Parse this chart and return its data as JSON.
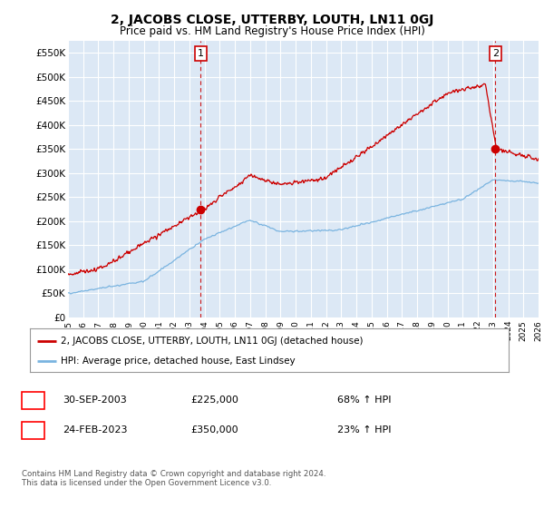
{
  "title": "2, JACOBS CLOSE, UTTERBY, LOUTH, LN11 0GJ",
  "subtitle": "Price paid vs. HM Land Registry's House Price Index (HPI)",
  "ylim": [
    0,
    575000
  ],
  "yticks": [
    0,
    50000,
    100000,
    150000,
    200000,
    250000,
    300000,
    350000,
    400000,
    450000,
    500000,
    550000
  ],
  "ytick_labels": [
    "£0",
    "£50K",
    "£100K",
    "£150K",
    "£200K",
    "£250K",
    "£300K",
    "£350K",
    "£400K",
    "£450K",
    "£500K",
    "£550K"
  ],
  "hpi_color": "#7ab4e0",
  "price_color": "#cc0000",
  "bg_color": "#ffffff",
  "plot_bg_color": "#dce8f5",
  "grid_color": "#ffffff",
  "transaction1_x": 2003.75,
  "transaction1_y": 225000,
  "transaction1_label": "1",
  "transaction2_x": 2023.15,
  "transaction2_y": 350000,
  "transaction2_label": "2",
  "legend_line1": "2, JACOBS CLOSE, UTTERBY, LOUTH, LN11 0GJ (detached house)",
  "legend_line2": "HPI: Average price, detached house, East Lindsey",
  "table_row1_num": "1",
  "table_row1_date": "30-SEP-2003",
  "table_row1_price": "£225,000",
  "table_row1_hpi": "68% ↑ HPI",
  "table_row2_num": "2",
  "table_row2_date": "24-FEB-2023",
  "table_row2_price": "£350,000",
  "table_row2_hpi": "23% ↑ HPI",
  "footer": "Contains HM Land Registry data © Crown copyright and database right 2024.\nThis data is licensed under the Open Government Licence v3.0.",
  "xmin": 1995,
  "xmax": 2026
}
